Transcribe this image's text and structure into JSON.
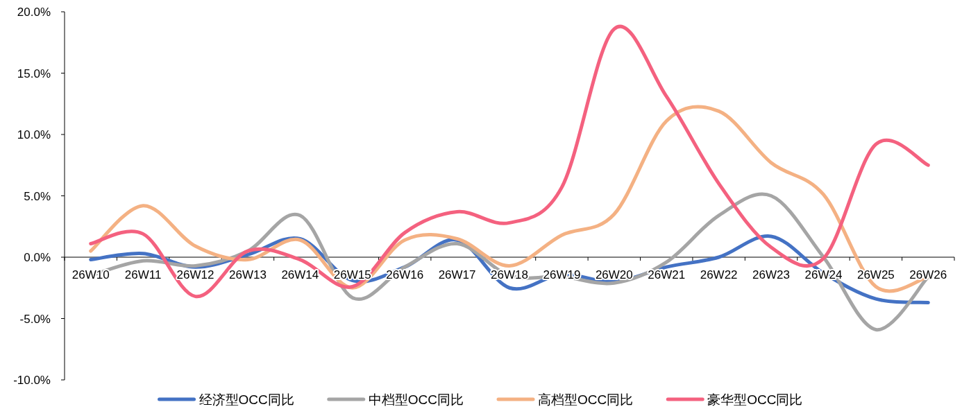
{
  "chart_data": {
    "type": "line",
    "categories": [
      "26W10",
      "26W11",
      "26W12",
      "26W13",
      "26W14",
      "26W15",
      "26W16",
      "26W17",
      "26W18",
      "26W19",
      "26W20",
      "26W21",
      "26W22",
      "26W23",
      "26W24",
      "26W25",
      "26W26"
    ],
    "series": [
      {
        "name": "经济型OCC同比",
        "color": "#4472c4",
        "values": [
          -0.2,
          0.3,
          -0.8,
          0.2,
          1.5,
          -1.9,
          -0.8,
          1.4,
          -2.5,
          -1.4,
          -2.0,
          -0.8,
          0.0,
          1.7,
          -1.3,
          -3.4,
          -3.7
        ]
      },
      {
        "name": "中档型OCC同比",
        "color": "#a5a5a5",
        "values": [
          -1.5,
          -0.3,
          -0.7,
          0.5,
          3.4,
          -3.3,
          -0.8,
          1.1,
          -1.5,
          -1.6,
          -2.1,
          -0.4,
          3.4,
          5.0,
          0.0,
          -5.9,
          -1.6
        ]
      },
      {
        "name": "高档型OCC同比",
        "color": "#f4b183",
        "values": [
          0.5,
          4.2,
          0.9,
          -0.2,
          1.4,
          -2.5,
          1.4,
          1.5,
          -0.7,
          1.8,
          3.5,
          11.1,
          11.9,
          7.7,
          5.1,
          -2.4,
          -1.6
        ]
      },
      {
        "name": "豪华型OCC同比",
        "color": "#f4617f",
        "values": [
          1.1,
          1.9,
          -3.2,
          0.5,
          -0.2,
          -2.4,
          2.0,
          3.7,
          2.8,
          5.7,
          18.6,
          13.1,
          6.0,
          0.8,
          -0.1,
          9.2,
          7.5
        ]
      }
    ],
    "ylim": [
      -10,
      20
    ],
    "yticks": [
      {
        "value": -10,
        "label": "-10.0%"
      },
      {
        "value": -5,
        "label": "-5.0%"
      },
      {
        "value": 0,
        "label": "0.0%"
      },
      {
        "value": 5,
        "label": "5.0%"
      },
      {
        "value": 10,
        "label": "10.0%"
      },
      {
        "value": 15,
        "label": "15.0%"
      },
      {
        "value": 20,
        "label": "20.0%"
      }
    ],
    "legend": "bottom",
    "marker": "none",
    "line_style": "solid"
  }
}
